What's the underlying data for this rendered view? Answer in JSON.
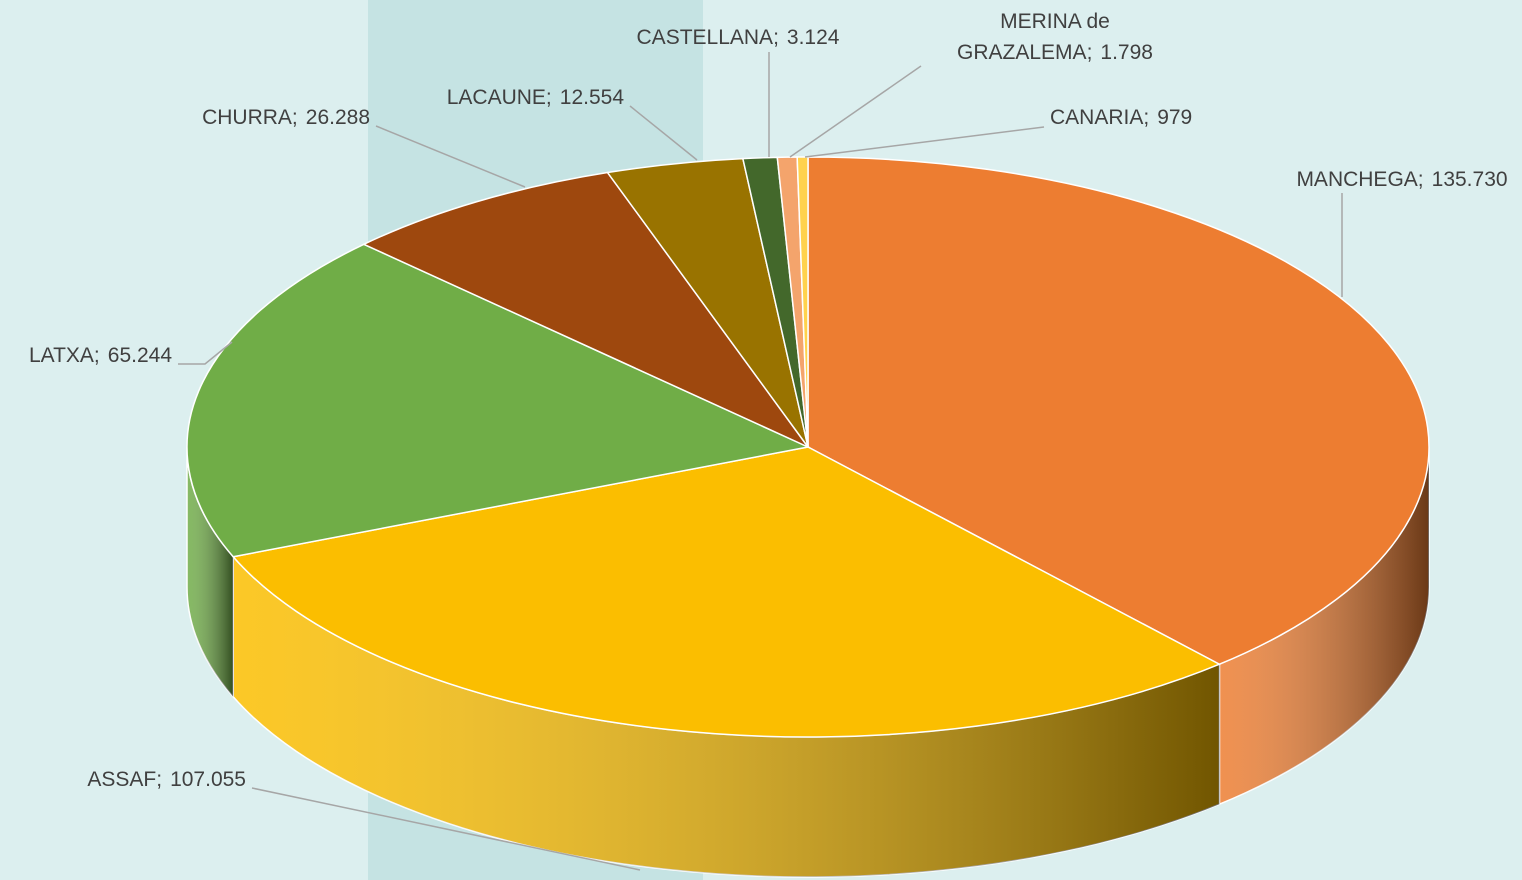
{
  "chart_data": {
    "type": "pie3d",
    "categories": [
      "MANCHEGA",
      "ASSAF",
      "LATXA",
      "CHURRA",
      "LACAUNE",
      "CASTELLANA",
      "MERINA de GRAZALEMA",
      "CANARIA"
    ],
    "values": [
      135730,
      107055,
      65244,
      26288,
      12554,
      3124,
      1798,
      979
    ],
    "value_labels": [
      "135.730",
      "107.055",
      "65.244",
      "26.288",
      "12.554",
      "3.124",
      "1.798",
      "979"
    ],
    "label_separator": ";",
    "colors": [
      "#ed7d31",
      "#fbbe00",
      "#70ad47",
      "#9e480e",
      "#997300",
      "#43682b",
      "#f4a46c",
      "#ffd24d"
    ]
  }
}
